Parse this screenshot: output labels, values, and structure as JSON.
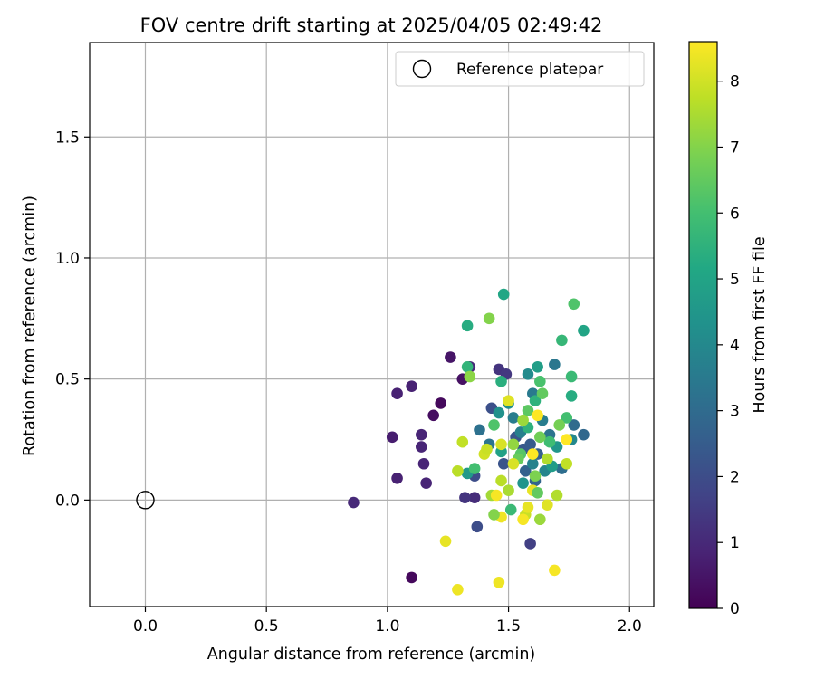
{
  "chart_data": {
    "type": "scatter",
    "title": "FOV centre drift starting at 2025/04/05 02:49:42",
    "xlabel": "Angular distance from reference (arcmin)",
    "ylabel": "Rotation from reference (arcmin)",
    "xlim": [
      -0.23,
      2.1
    ],
    "ylim": [
      -0.44,
      1.89
    ],
    "xticks": [
      0.0,
      0.5,
      1.0,
      1.5,
      2.0
    ],
    "xtick_labels": [
      "0.0",
      "0.5",
      "1.0",
      "1.5",
      "2.0"
    ],
    "yticks": [
      0.0,
      0.5,
      1.0,
      1.5
    ],
    "ytick_labels": [
      "0.0",
      "0.5",
      "1.0",
      "1.5"
    ],
    "grid": true,
    "legend": {
      "position": "top-right",
      "entries": [
        "Reference platepar"
      ]
    },
    "reference_point": {
      "label": "Reference platepar",
      "x": 0.0,
      "y": 0.0
    },
    "colorbar": {
      "label": "Hours from first FF file",
      "range": [
        0,
        8.6
      ],
      "ticks": [
        0,
        1,
        2,
        3,
        4,
        5,
        6,
        7,
        8
      ],
      "tick_labels": [
        "0",
        "1",
        "2",
        "3",
        "4",
        "5",
        "6",
        "7",
        "8"
      ],
      "colormap": "viridis"
    },
    "series": [
      {
        "points": [
          {
            "x": 1.1,
            "y": -0.32,
            "c": 0.2
          },
          {
            "x": 1.22,
            "y": 0.4,
            "c": 0.2
          },
          {
            "x": 1.19,
            "y": 0.35,
            "c": 0.3
          },
          {
            "x": 1.31,
            "y": 0.5,
            "c": 0.4
          },
          {
            "x": 1.26,
            "y": 0.59,
            "c": 0.5
          },
          {
            "x": 1.02,
            "y": 0.26,
            "c": 0.7
          },
          {
            "x": 1.04,
            "y": 0.44,
            "c": 0.8
          },
          {
            "x": 1.1,
            "y": 0.47,
            "c": 0.8
          },
          {
            "x": 1.14,
            "y": 0.27,
            "c": 0.9
          },
          {
            "x": 1.14,
            "y": 0.22,
            "c": 0.9
          },
          {
            "x": 1.15,
            "y": 0.15,
            "c": 0.9
          },
          {
            "x": 1.16,
            "y": 0.07,
            "c": 0.9
          },
          {
            "x": 1.04,
            "y": 0.09,
            "c": 0.8
          },
          {
            "x": 0.86,
            "y": -0.01,
            "c": 1.0
          },
          {
            "x": 1.34,
            "y": 0.55,
            "c": 1.0
          },
          {
            "x": 1.36,
            "y": 0.01,
            "c": 1.1
          },
          {
            "x": 1.32,
            "y": 0.01,
            "c": 1.3
          },
          {
            "x": 1.46,
            "y": 0.54,
            "c": 1.3
          },
          {
            "x": 1.49,
            "y": 0.52,
            "c": 1.4
          },
          {
            "x": 1.59,
            "y": -0.18,
            "c": 1.6
          },
          {
            "x": 1.37,
            "y": -0.11,
            "c": 2.0
          },
          {
            "x": 1.36,
            "y": 0.1,
            "c": 2.0
          },
          {
            "x": 1.43,
            "y": 0.38,
            "c": 2.1
          },
          {
            "x": 1.48,
            "y": 0.15,
            "c": 2.2
          },
          {
            "x": 1.53,
            "y": 0.26,
            "c": 2.3
          },
          {
            "x": 1.56,
            "y": 0.21,
            "c": 2.4
          },
          {
            "x": 1.59,
            "y": 0.23,
            "c": 2.5
          },
          {
            "x": 1.62,
            "y": 0.19,
            "c": 2.6
          },
          {
            "x": 1.57,
            "y": 0.12,
            "c": 2.7
          },
          {
            "x": 1.61,
            "y": 0.08,
            "c": 2.8
          },
          {
            "x": 1.81,
            "y": 0.27,
            "c": 2.9
          },
          {
            "x": 1.77,
            "y": 0.31,
            "c": 3.0
          },
          {
            "x": 1.72,
            "y": 0.13,
            "c": 3.1
          },
          {
            "x": 1.38,
            "y": 0.29,
            "c": 3.2
          },
          {
            "x": 1.42,
            "y": 0.23,
            "c": 3.3
          },
          {
            "x": 1.67,
            "y": 0.27,
            "c": 3.3
          },
          {
            "x": 1.69,
            "y": 0.56,
            "c": 3.4
          },
          {
            "x": 1.6,
            "y": 0.44,
            "c": 3.5
          },
          {
            "x": 1.64,
            "y": 0.33,
            "c": 3.6
          },
          {
            "x": 1.52,
            "y": 0.34,
            "c": 3.6
          },
          {
            "x": 1.55,
            "y": 0.28,
            "c": 3.7
          },
          {
            "x": 1.6,
            "y": 0.15,
            "c": 3.8
          },
          {
            "x": 1.65,
            "y": 0.12,
            "c": 3.9
          },
          {
            "x": 1.76,
            "y": 0.25,
            "c": 4.0
          },
          {
            "x": 1.58,
            "y": 0.52,
            "c": 4.1
          },
          {
            "x": 1.5,
            "y": 0.4,
            "c": 4.2
          },
          {
            "x": 1.46,
            "y": 0.36,
            "c": 4.3
          },
          {
            "x": 1.56,
            "y": 0.07,
            "c": 4.4
          },
          {
            "x": 1.7,
            "y": 0.22,
            "c": 4.5
          },
          {
            "x": 1.33,
            "y": 0.11,
            "c": 4.6
          },
          {
            "x": 1.68,
            "y": 0.14,
            "c": 4.7
          },
          {
            "x": 1.62,
            "y": 0.55,
            "c": 4.8
          },
          {
            "x": 1.47,
            "y": 0.2,
            "c": 4.9
          },
          {
            "x": 1.81,
            "y": 0.7,
            "c": 5.0
          },
          {
            "x": 1.48,
            "y": 0.85,
            "c": 5.1
          },
          {
            "x": 1.33,
            "y": 0.72,
            "c": 5.3
          },
          {
            "x": 1.76,
            "y": 0.43,
            "c": 5.3
          },
          {
            "x": 1.47,
            "y": 0.49,
            "c": 5.4
          },
          {
            "x": 1.58,
            "y": 0.3,
            "c": 5.5
          },
          {
            "x": 1.61,
            "y": 0.41,
            "c": 5.5
          },
          {
            "x": 1.33,
            "y": 0.55,
            "c": 5.6
          },
          {
            "x": 1.72,
            "y": 0.66,
            "c": 5.7
          },
          {
            "x": 1.76,
            "y": 0.51,
            "c": 5.8
          },
          {
            "x": 1.51,
            "y": -0.04,
            "c": 5.8
          },
          {
            "x": 1.67,
            "y": 0.24,
            "c": 5.9
          },
          {
            "x": 1.36,
            "y": 0.13,
            "c": 6.0
          },
          {
            "x": 1.74,
            "y": 0.34,
            "c": 6.0
          },
          {
            "x": 1.63,
            "y": 0.49,
            "c": 6.1
          },
          {
            "x": 1.77,
            "y": 0.81,
            "c": 6.2
          },
          {
            "x": 1.44,
            "y": 0.31,
            "c": 6.2
          },
          {
            "x": 1.55,
            "y": 0.19,
            "c": 6.3
          },
          {
            "x": 1.58,
            "y": 0.37,
            "c": 6.4
          },
          {
            "x": 1.64,
            "y": 0.44,
            "c": 6.5
          },
          {
            "x": 1.54,
            "y": 0.17,
            "c": 6.6
          },
          {
            "x": 1.63,
            "y": 0.26,
            "c": 6.7
          },
          {
            "x": 1.71,
            "y": 0.31,
            "c": 6.8
          },
          {
            "x": 1.61,
            "y": 0.1,
            "c": 6.9
          },
          {
            "x": 1.42,
            "y": 0.75,
            "c": 7.0
          },
          {
            "x": 1.34,
            "y": 0.51,
            "c": 7.1
          },
          {
            "x": 1.52,
            "y": 0.23,
            "c": 7.2
          },
          {
            "x": 1.56,
            "y": 0.33,
            "c": 7.3
          },
          {
            "x": 1.43,
            "y": 0.02,
            "c": 7.4
          },
          {
            "x": 1.5,
            "y": 0.04,
            "c": 7.5
          },
          {
            "x": 1.66,
            "y": 0.17,
            "c": 7.6
          },
          {
            "x": 1.29,
            "y": 0.12,
            "c": 7.7
          },
          {
            "x": 1.74,
            "y": 0.15,
            "c": 7.8
          },
          {
            "x": 1.57,
            "y": -0.06,
            "c": 7.9
          },
          {
            "x": 1.4,
            "y": 0.19,
            "c": 8.0
          },
          {
            "x": 1.47,
            "y": 0.23,
            "c": 8.1
          },
          {
            "x": 1.5,
            "y": 0.41,
            "c": 8.2
          },
          {
            "x": 1.6,
            "y": 0.04,
            "c": 8.3
          },
          {
            "x": 1.24,
            "y": -0.17,
            "c": 8.3
          },
          {
            "x": 1.29,
            "y": -0.37,
            "c": 8.4
          },
          {
            "x": 1.46,
            "y": -0.34,
            "c": 8.4
          },
          {
            "x": 1.69,
            "y": -0.29,
            "c": 8.5
          },
          {
            "x": 1.45,
            "y": 0.02,
            "c": 8.5
          },
          {
            "x": 1.62,
            "y": 0.35,
            "c": 8.6
          },
          {
            "x": 1.74,
            "y": 0.25,
            "c": 8.6
          },
          {
            "x": 1.6,
            "y": 0.19,
            "c": 8.6
          },
          {
            "x": 1.56,
            "y": -0.08,
            "c": 8.5
          },
          {
            "x": 1.47,
            "y": -0.07,
            "c": 8.4
          },
          {
            "x": 1.58,
            "y": -0.03,
            "c": 8.3
          },
          {
            "x": 1.66,
            "y": -0.02,
            "c": 8.2
          },
          {
            "x": 1.52,
            "y": 0.15,
            "c": 8.1
          },
          {
            "x": 1.41,
            "y": 0.21,
            "c": 7.9
          },
          {
            "x": 1.31,
            "y": 0.24,
            "c": 7.8
          },
          {
            "x": 1.47,
            "y": 0.08,
            "c": 7.7
          },
          {
            "x": 1.7,
            "y": 0.02,
            "c": 7.6
          },
          {
            "x": 1.63,
            "y": -0.08,
            "c": 7.3
          },
          {
            "x": 1.44,
            "y": -0.06,
            "c": 7.0
          },
          {
            "x": 1.62,
            "y": 0.03,
            "c": 6.5
          }
        ]
      }
    ]
  }
}
